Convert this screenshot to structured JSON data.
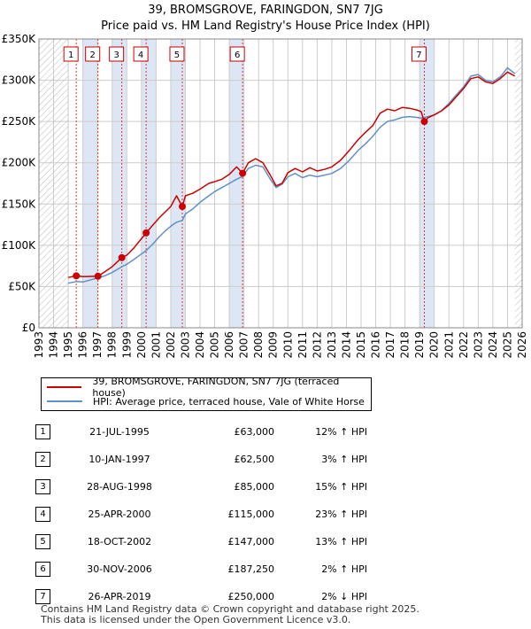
{
  "header": {
    "title_line1": "39, BROMSGROVE, FARINGDON, SN7 7JG",
    "title_line2": "Price paid vs. HM Land Registry's House Price Index (HPI)"
  },
  "colors": {
    "property_line": "#cc0000",
    "hpi_line": "#6090c8",
    "band_fill": "#dde6f5",
    "grid": "#cccccc"
  },
  "chart_data": {
    "type": "line",
    "title": "Price paid vs. HM Land Registry's House Price Index (HPI)",
    "x_range": [
      1993,
      2026
    ],
    "ylim": [
      0,
      350000
    ],
    "x_ticks": [
      1993,
      1994,
      1995,
      1996,
      1997,
      1998,
      1999,
      2000,
      2001,
      2002,
      2003,
      2004,
      2005,
      2006,
      2007,
      2008,
      2009,
      2010,
      2011,
      2012,
      2013,
      2014,
      2015,
      2016,
      2017,
      2018,
      2019,
      2020,
      2021,
      2022,
      2023,
      2024,
      2025,
      2026
    ],
    "y_ticks": [
      {
        "value": 0,
        "label": "£0"
      },
      {
        "value": 50000,
        "label": "£50K"
      },
      {
        "value": 100000,
        "label": "£100K"
      },
      {
        "value": 150000,
        "label": "£150K"
      },
      {
        "value": 200000,
        "label": "£200K"
      },
      {
        "value": 250000,
        "label": "£250K"
      },
      {
        "value": 300000,
        "label": "£300K"
      },
      {
        "value": 350000,
        "label": "£350K"
      }
    ],
    "data_start": 1995.0,
    "data_end": 2025.5,
    "series": [
      {
        "name": "39, BROMSGROVE, FARINGDON, SN7 7JG (terraced house)",
        "color": "#cc0000",
        "points": [
          [
            1995.0,
            61000
          ],
          [
            1995.55,
            63000
          ],
          [
            1996.0,
            62000
          ],
          [
            1997.03,
            62500
          ],
          [
            1997.5,
            68000
          ],
          [
            1998.0,
            74000
          ],
          [
            1998.66,
            85000
          ],
          [
            1999.0,
            88000
          ],
          [
            1999.5,
            97000
          ],
          [
            2000.32,
            115000
          ],
          [
            2000.8,
            125000
          ],
          [
            2001.2,
            133000
          ],
          [
            2001.6,
            140000
          ],
          [
            2002.0,
            147000
          ],
          [
            2002.4,
            160000
          ],
          [
            2002.79,
            147000
          ],
          [
            2003.0,
            160000
          ],
          [
            2003.5,
            163000
          ],
          [
            2004.0,
            168000
          ],
          [
            2004.6,
            175000
          ],
          [
            2005.0,
            177000
          ],
          [
            2005.5,
            180000
          ],
          [
            2006.0,
            186000
          ],
          [
            2006.5,
            195000
          ],
          [
            2006.91,
            187250
          ],
          [
            2007.3,
            200000
          ],
          [
            2007.8,
            205000
          ],
          [
            2008.3,
            200000
          ],
          [
            2008.8,
            185000
          ],
          [
            2009.2,
            172000
          ],
          [
            2009.6,
            175000
          ],
          [
            2010.0,
            188000
          ],
          [
            2010.5,
            193000
          ],
          [
            2011.0,
            189000
          ],
          [
            2011.5,
            194000
          ],
          [
            2012.0,
            190000
          ],
          [
            2012.5,
            192000
          ],
          [
            2013.0,
            195000
          ],
          [
            2013.6,
            203000
          ],
          [
            2014.2,
            215000
          ],
          [
            2014.8,
            228000
          ],
          [
            2015.3,
            237000
          ],
          [
            2015.8,
            245000
          ],
          [
            2016.3,
            260000
          ],
          [
            2016.8,
            265000
          ],
          [
            2017.3,
            263000
          ],
          [
            2017.8,
            267000
          ],
          [
            2018.3,
            266000
          ],
          [
            2018.8,
            264000
          ],
          [
            2019.1,
            262000
          ],
          [
            2019.32,
            250000
          ],
          [
            2019.6,
            255000
          ],
          [
            2020.0,
            258000
          ],
          [
            2020.5,
            263000
          ],
          [
            2021.0,
            270000
          ],
          [
            2021.5,
            280000
          ],
          [
            2022.0,
            290000
          ],
          [
            2022.5,
            302000
          ],
          [
            2023.0,
            304000
          ],
          [
            2023.5,
            298000
          ],
          [
            2024.0,
            296000
          ],
          [
            2024.5,
            302000
          ],
          [
            2025.0,
            310000
          ],
          [
            2025.5,
            305000
          ]
        ]
      },
      {
        "name": "HPI: Average price, terraced house, Vale of White Horse",
        "color": "#6090c8",
        "points": [
          [
            1995.0,
            54000
          ],
          [
            1995.55,
            56000
          ],
          [
            1996.0,
            55500
          ],
          [
            1997.03,
            60500
          ],
          [
            1997.5,
            63000
          ],
          [
            1998.0,
            67000
          ],
          [
            1998.66,
            74000
          ],
          [
            1999.0,
            77000
          ],
          [
            1999.5,
            83000
          ],
          [
            2000.32,
            93500
          ],
          [
            2000.8,
            102000
          ],
          [
            2001.2,
            110000
          ],
          [
            2001.6,
            117000
          ],
          [
            2002.0,
            123000
          ],
          [
            2002.4,
            128000
          ],
          [
            2002.79,
            130000
          ],
          [
            2003.0,
            138000
          ],
          [
            2003.5,
            144000
          ],
          [
            2004.0,
            152000
          ],
          [
            2004.6,
            160000
          ],
          [
            2005.0,
            165000
          ],
          [
            2005.5,
            170000
          ],
          [
            2006.0,
            175000
          ],
          [
            2006.5,
            180000
          ],
          [
            2006.91,
            183500
          ],
          [
            2007.3,
            193000
          ],
          [
            2007.8,
            197000
          ],
          [
            2008.3,
            195000
          ],
          [
            2008.8,
            180000
          ],
          [
            2009.2,
            170000
          ],
          [
            2009.6,
            174000
          ],
          [
            2010.0,
            183000
          ],
          [
            2010.5,
            187000
          ],
          [
            2011.0,
            182000
          ],
          [
            2011.5,
            185000
          ],
          [
            2012.0,
            183000
          ],
          [
            2012.5,
            185000
          ],
          [
            2013.0,
            187000
          ],
          [
            2013.6,
            193000
          ],
          [
            2014.2,
            203000
          ],
          [
            2014.8,
            215000
          ],
          [
            2015.3,
            223000
          ],
          [
            2015.8,
            232000
          ],
          [
            2016.3,
            243000
          ],
          [
            2016.8,
            250000
          ],
          [
            2017.3,
            252000
          ],
          [
            2017.8,
            255000
          ],
          [
            2018.3,
            256000
          ],
          [
            2018.8,
            255000
          ],
          [
            2019.1,
            254000
          ],
          [
            2019.32,
            255000
          ],
          [
            2019.6,
            256000
          ],
          [
            2020.0,
            258000
          ],
          [
            2020.5,
            263000
          ],
          [
            2021.0,
            272000
          ],
          [
            2021.5,
            282000
          ],
          [
            2022.0,
            292000
          ],
          [
            2022.5,
            305000
          ],
          [
            2023.0,
            307000
          ],
          [
            2023.5,
            300000
          ],
          [
            2024.0,
            298000
          ],
          [
            2024.5,
            304000
          ],
          [
            2025.0,
            315000
          ],
          [
            2025.5,
            308000
          ]
        ]
      }
    ],
    "transactions": [
      {
        "n": "1",
        "date": "21-JUL-1995",
        "x": 1995.55,
        "price": 63000
      },
      {
        "n": "2",
        "date": "10-JAN-1997",
        "x": 1997.03,
        "price": 62500
      },
      {
        "n": "3",
        "date": "28-AUG-1998",
        "x": 1998.66,
        "price": 85000
      },
      {
        "n": "4",
        "date": "25-APR-2000",
        "x": 2000.32,
        "price": 115000
      },
      {
        "n": "5",
        "date": "18-OCT-2002",
        "x": 2002.79,
        "price": 147000
      },
      {
        "n": "6",
        "date": "30-NOV-2006",
        "x": 2006.91,
        "price": 187250
      },
      {
        "n": "7",
        "date": "26-APR-2019",
        "x": 2019.32,
        "price": 250000
      }
    ],
    "bands": [
      [
        1996.0,
        1997.0
      ],
      [
        1998.0,
        1999.0
      ],
      [
        2000.0,
        2001.0
      ],
      [
        2002.0,
        2003.0
      ],
      [
        2006.0,
        2007.0
      ],
      [
        2019.0,
        2020.0
      ]
    ]
  },
  "legend": {
    "property_label": "39, BROMSGROVE, FARINGDON, SN7 7JG (terraced house)",
    "hpi_label": "HPI: Average price, terraced house, Vale of White Horse"
  },
  "table": {
    "rows": [
      {
        "num": "1",
        "date": "21-JUL-1995",
        "price": "£63,000",
        "hpi": "12% ↑ HPI"
      },
      {
        "num": "2",
        "date": "10-JAN-1997",
        "price": "£62,500",
        "hpi": "3% ↑ HPI"
      },
      {
        "num": "3",
        "date": "28-AUG-1998",
        "price": "£85,000",
        "hpi": "15% ↑ HPI"
      },
      {
        "num": "4",
        "date": "25-APR-2000",
        "price": "£115,000",
        "hpi": "23% ↑ HPI"
      },
      {
        "num": "5",
        "date": "18-OCT-2002",
        "price": "£147,000",
        "hpi": "13% ↑ HPI"
      },
      {
        "num": "6",
        "date": "30-NOV-2006",
        "price": "£187,250",
        "hpi": "2% ↑ HPI"
      },
      {
        "num": "7",
        "date": "26-APR-2019",
        "price": "£250,000",
        "hpi": "2% ↓ HPI"
      }
    ]
  },
  "footer": {
    "line1": "Contains HM Land Registry data © Crown copyright and database right 2025.",
    "line2": "This data is licensed under the Open Government Licence v3.0."
  }
}
